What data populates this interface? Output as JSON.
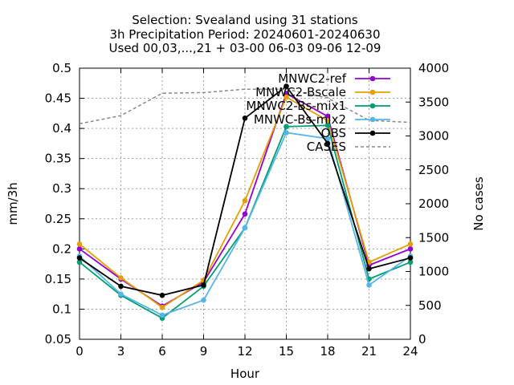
{
  "chart_data": {
    "type": "line",
    "title_lines": [
      "Selection: Svealand using     31 stations",
      "3h Precipitation   Period: 20240601-20240630",
      "Used 00,03,...,21 + 03-00 06-03 09-06 12-09"
    ],
    "xlabel": "Hour",
    "ylabel": "mm/3h",
    "y2label": "No cases",
    "xlim": [
      0,
      24
    ],
    "ylim": [
      0.05,
      0.5
    ],
    "y2lim": [
      0,
      4000
    ],
    "xticks": [
      "0",
      "3",
      "6",
      "9",
      "12",
      "15",
      "18",
      "21",
      "24"
    ],
    "yticks": [
      "0.05",
      "0.1",
      "0.15",
      "0.2",
      "0.25",
      "0.3",
      "0.35",
      "0.4",
      "0.45",
      "0.5"
    ],
    "y2ticks": [
      "0",
      "500",
      "1000",
      "1500",
      "2000",
      "2500",
      "3000",
      "3500",
      "4000"
    ],
    "grid": true,
    "legend_position": "top-right",
    "x": [
      0,
      3,
      6,
      9,
      12,
      15,
      18,
      21,
      24
    ],
    "series": [
      {
        "name": "MNWC2-ref",
        "color": "#9400d3",
        "axis": "y",
        "marker": "circle",
        "values": [
          0.2,
          0.15,
          0.105,
          0.145,
          0.258,
          0.458,
          0.42,
          0.173,
          0.2
        ]
      },
      {
        "name": "MNWC2-Bscale",
        "color": "#e69f00",
        "axis": "y",
        "marker": "circle",
        "values": [
          0.208,
          0.152,
          0.103,
          0.148,
          0.28,
          0.452,
          0.413,
          0.178,
          0.208
        ]
      },
      {
        "name": "MNWC2-Bs-mix1",
        "color": "#009e73",
        "axis": "y",
        "marker": "circle",
        "values": [
          0.178,
          0.123,
          0.085,
          0.138,
          0.235,
          0.403,
          0.405,
          0.15,
          0.178
        ]
      },
      {
        "name": "MNWC-Bs-mix2",
        "color": "#56b4e9",
        "axis": "y",
        "marker": "circle",
        "values": [
          0.188,
          0.125,
          0.09,
          0.115,
          0.235,
          0.393,
          0.383,
          0.14,
          0.188
        ]
      },
      {
        "name": "OBS",
        "color": "#000000",
        "axis": "y",
        "marker": "circle",
        "values": [
          0.185,
          0.138,
          0.123,
          0.14,
          0.417,
          0.47,
          0.375,
          0.167,
          0.185
        ]
      },
      {
        "name": "CASES",
        "color": "#888888",
        "axis": "y2",
        "dashed": true,
        "values": [
          3180,
          3300,
          3630,
          3640,
          3690,
          3690,
          3560,
          3230,
          3200
        ]
      }
    ]
  }
}
